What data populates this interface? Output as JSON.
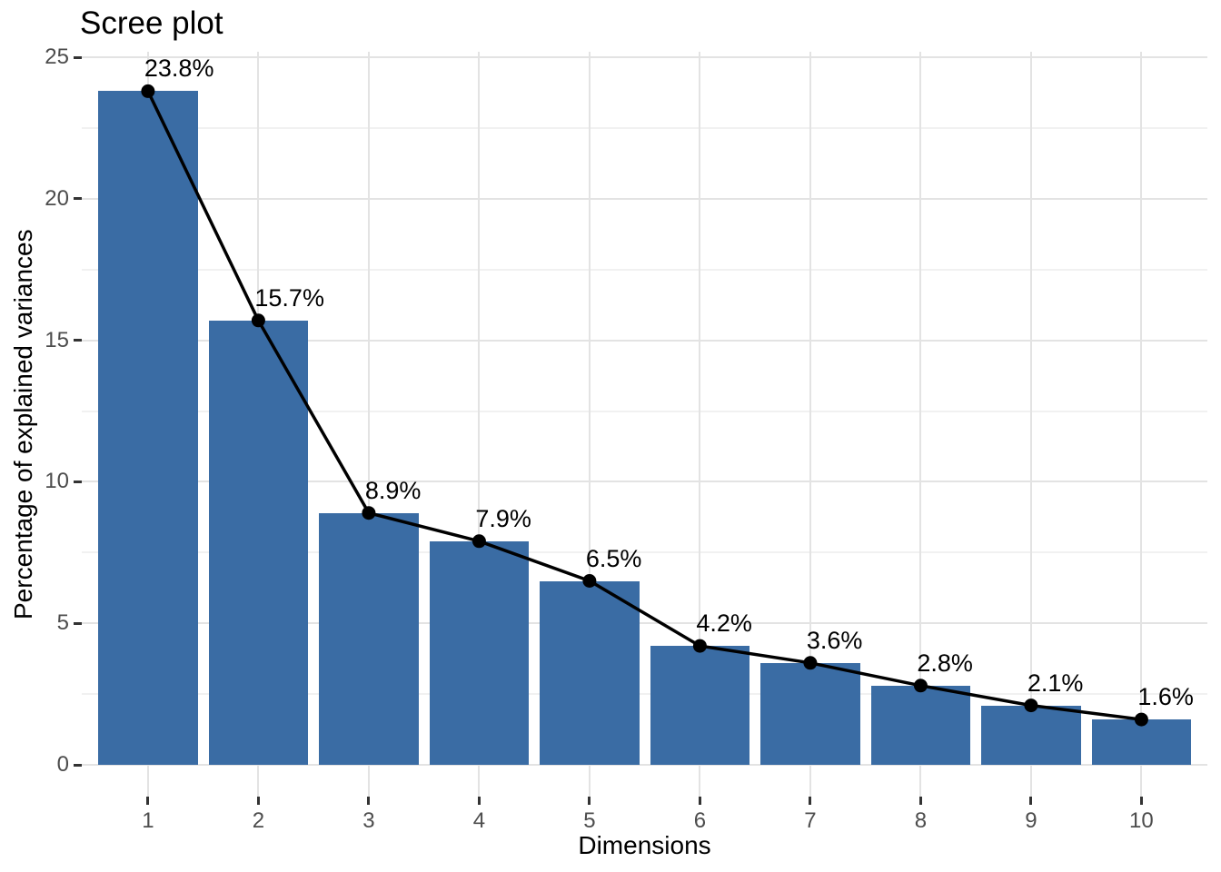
{
  "chart_data": {
    "type": "bar",
    "subtype": "bar-with-line-overlay",
    "title": "Scree plot",
    "xlabel": "Dimensions",
    "ylabel": "Percentage of explained variances",
    "categories": [
      "1",
      "2",
      "3",
      "4",
      "5",
      "6",
      "7",
      "8",
      "9",
      "10"
    ],
    "values": [
      23.8,
      15.7,
      8.9,
      7.9,
      6.5,
      4.2,
      3.6,
      2.8,
      2.1,
      1.6
    ],
    "point_labels": [
      "23.8%",
      "15.7%",
      "8.9%",
      "7.9%",
      "6.5%",
      "4.2%",
      "3.6%",
      "2.8%",
      "2.1%",
      "1.6%"
    ],
    "series": [
      {
        "name": "explained-variance-bars",
        "type": "bar",
        "values": [
          23.8,
          15.7,
          8.9,
          7.9,
          6.5,
          4.2,
          3.6,
          2.8,
          2.1,
          1.6
        ]
      },
      {
        "name": "explained-variance-line",
        "type": "line",
        "values": [
          23.8,
          15.7,
          8.9,
          7.9,
          6.5,
          4.2,
          3.6,
          2.8,
          2.1,
          1.6
        ]
      }
    ],
    "ylim": [
      -1.19,
      25.19
    ],
    "yticks": [
      0,
      5,
      10,
      15,
      20,
      25
    ],
    "yticks_minor": [
      2.5,
      7.5,
      12.5,
      17.5,
      22.5
    ],
    "grid": "on",
    "legend": "none",
    "colors": {
      "bar_fill": "#3A6CA4",
      "line": "#000000",
      "point": "#000000",
      "grid_major": "#E3E3E3",
      "grid_minor": "#F1F1F1",
      "tick_mark": "#333333",
      "tick_label": "#4D4D4D",
      "text": "#000000",
      "background": "#FFFFFF"
    }
  }
}
